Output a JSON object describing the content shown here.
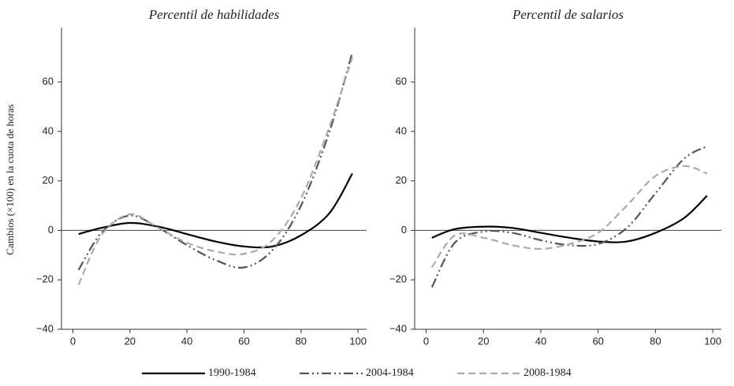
{
  "chart_data": [
    {
      "type": "line",
      "title": "Percentil de habilidades",
      "ylabel": "Cambios (×100) en la cuota de horas",
      "x": [
        2,
        10,
        20,
        30,
        40,
        50,
        60,
        70,
        80,
        90,
        98
      ],
      "series": [
        {
          "name": "1990-1984",
          "color": "#000000",
          "linestyle": "solid",
          "values": [
            -1.5,
            1,
            3,
            1.5,
            -1.5,
            -4.5,
            -6.5,
            -6.5,
            -2,
            7,
            23
          ]
        },
        {
          "name": "2004-1984",
          "color": "#555555",
          "linestyle": "dashdot",
          "values": [
            -16,
            -1,
            6,
            1,
            -6,
            -12,
            -15,
            -8,
            10,
            40,
            72
          ]
        },
        {
          "name": "2008-1984",
          "color": "#aaaaaa",
          "linestyle": "dashed",
          "values": [
            -22,
            -2,
            6.5,
            1,
            -5,
            -8.5,
            -9.5,
            -4,
            13,
            42,
            70
          ]
        }
      ],
      "xlim": [
        -4,
        103
      ],
      "ylim": [
        -40,
        82
      ],
      "xticks": [
        0,
        20,
        40,
        60,
        80,
        100
      ],
      "yticks": [
        {
          "value": -40,
          "label": "−40"
        },
        {
          "value": -20,
          "label": "−20"
        },
        0,
        20,
        40,
        60
      ]
    },
    {
      "type": "line",
      "title": "Percentil de salarios",
      "x": [
        2,
        10,
        20,
        30,
        40,
        50,
        60,
        70,
        80,
        90,
        98
      ],
      "series": [
        {
          "name": "1990-1984",
          "color": "#000000",
          "linestyle": "solid",
          "values": [
            -3,
            0.5,
            1.5,
            1,
            -1,
            -3,
            -4.5,
            -4.5,
            -1,
            5,
            14
          ]
        },
        {
          "name": "2004-1984",
          "color": "#555555",
          "linestyle": "dashdot",
          "values": [
            -23,
            -5,
            -0.5,
            -1,
            -4,
            -6,
            -5.5,
            1,
            15,
            29,
            34
          ]
        },
        {
          "name": "2008-1984",
          "color": "#aaaaaa",
          "linestyle": "dashed",
          "values": [
            -15,
            -2,
            -3,
            -6,
            -7.5,
            -5.5,
            -1,
            10,
            22,
            26,
            23
          ]
        }
      ],
      "xlim": [
        -4,
        103
      ],
      "ylim": [
        -40,
        82
      ],
      "xticks": [
        0,
        20,
        40,
        60,
        80,
        100
      ],
      "yticks": [
        {
          "value": -40,
          "label": "−40"
        },
        {
          "value": -20,
          "label": "−20"
        },
        0,
        20,
        40,
        60
      ]
    }
  ]
}
